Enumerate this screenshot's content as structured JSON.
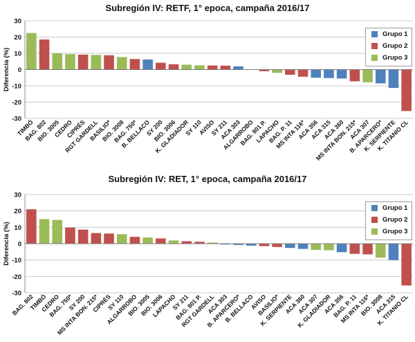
{
  "colors": {
    "Grupo 1": "#4f81bd",
    "Grupo 2": "#c0504d",
    "Grupo 3": "#9bbb59",
    "grid": "#c8c8c8"
  },
  "chart_data": [
    {
      "type": "bar",
      "title": "Subregión IV: RETF, 1° epoca, campaña 2016/17",
      "ylabel": "Diferencia (%)",
      "xlabel": "",
      "ylim": [
        -30,
        30
      ],
      "yticks": [
        30,
        20,
        10,
        0,
        -10,
        -20,
        -30
      ],
      "legend": [
        "Grupo 1",
        "Grupo 2",
        "Grupo 3"
      ],
      "legend_position": "top-right",
      "categories": [
        "TIMBÓ",
        "BAG. 802",
        "BIO. 3005",
        "CEDRO",
        "CIPRÉS",
        "RGT GARDELL",
        "BASILIO*",
        "BIO. 3008",
        "BAG. 750*",
        "B. BELLACO",
        "SY 200",
        "BIO. 3006",
        "K. GLADIADOR",
        "SY 110",
        "AVISO",
        "SY 211",
        "ACA 303",
        "ALGARROBO",
        "BAG. 801 P.",
        "LAPACHO",
        "BAG. P. 11",
        "MS INTA 116*",
        "ACA 356",
        "ACA 315",
        "ACA 360",
        "MS INTA BON. 215*",
        "ACA 307",
        "B. APARCERO*",
        "K. SERPIENTE",
        "K. TITANIO CL"
      ],
      "values": [
        22.5,
        18.5,
        10,
        9.5,
        9.2,
        9,
        8.8,
        7.7,
        6.5,
        6.2,
        4.2,
        3.3,
        3,
        2.6,
        2.5,
        2.4,
        2,
        0.2,
        -1,
        -2,
        -3.2,
        -4.4,
        -5,
        -5.2,
        -5.5,
        -7.2,
        -7.8,
        -8.5,
        -11.3,
        -25.5
      ],
      "groups": [
        "Grupo 3",
        "Grupo 2",
        "Grupo 3",
        "Grupo 3",
        "Grupo 2",
        "Grupo 3",
        "Grupo 2",
        "Grupo 3",
        "Grupo 2",
        "Grupo 1",
        "Grupo 2",
        "Grupo 2",
        "Grupo 3",
        "Grupo 3",
        "Grupo 2",
        "Grupo 2",
        "Grupo 1",
        "Grupo 3",
        "Grupo 2",
        "Grupo 3",
        "Grupo 2",
        "Grupo 2",
        "Grupo 1",
        "Grupo 1",
        "Grupo 1",
        "Grupo 2",
        "Grupo 3",
        "Grupo 1",
        "Grupo 1",
        "Grupo 2"
      ]
    },
    {
      "type": "bar",
      "title": "Subregión IV: RET, 1° epoca, campaña 2016/17",
      "ylabel": "Diferencia (%)",
      "xlabel": "",
      "ylim": [
        -30,
        30
      ],
      "yticks": [
        30,
        20,
        10,
        0,
        -10,
        -20,
        -30
      ],
      "legend": [
        "Grupo 1",
        "Grupo 2",
        "Grupo 3"
      ],
      "legend_position": "top-right",
      "categories": [
        "BAG. 802",
        "TIMBÓ",
        "CEDRO",
        "BAG. 750*",
        "SY 200",
        "MS INTA BON. 215*",
        "CIPRÉS",
        "SY 110",
        "ALGARROBO",
        "BIO. 3005",
        "BIO. 3006",
        "LAPACHO",
        "SY 211",
        "BAG. 801 P.",
        "RGT GARDELL",
        "ACA 303",
        "B. APARCERO*",
        "B. BELLACO",
        "AVISO",
        "BASILIO*",
        "K. SERPIENTE",
        "ACA 360",
        "ACA 307",
        "K. GLADIADOR",
        "ACA 356",
        "BAG. P. 11",
        "MS INTA 116*",
        "BIO. 3008",
        "ACA 315",
        "K. TITANIO CL"
      ],
      "values": [
        21,
        15,
        14.5,
        9.8,
        8.6,
        6.5,
        6.2,
        5.8,
        4.2,
        3.8,
        3.2,
        2,
        1.5,
        1.2,
        0.7,
        -0.5,
        -0.8,
        -1.2,
        -1.5,
        -2,
        -2.6,
        -3.2,
        -3.8,
        -4,
        -5.2,
        -6.2,
        -6.5,
        -8.5,
        -10,
        -25.5
      ],
      "groups": [
        "Grupo 2",
        "Grupo 3",
        "Grupo 3",
        "Grupo 2",
        "Grupo 2",
        "Grupo 2",
        "Grupo 2",
        "Grupo 3",
        "Grupo 2",
        "Grupo 3",
        "Grupo 2",
        "Grupo 3",
        "Grupo 2",
        "Grupo 2",
        "Grupo 3",
        "Grupo 1",
        "Grupo 1",
        "Grupo 1",
        "Grupo 2",
        "Grupo 2",
        "Grupo 1",
        "Grupo 1",
        "Grupo 3",
        "Grupo 3",
        "Grupo 1",
        "Grupo 2",
        "Grupo 2",
        "Grupo 3",
        "Grupo 1",
        "Grupo 2"
      ]
    }
  ]
}
